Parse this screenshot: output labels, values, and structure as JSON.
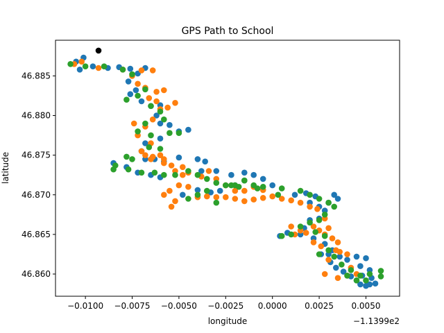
{
  "chart_data": {
    "type": "scatter",
    "title": "GPS Path to School",
    "xlabel": "longitude",
    "ylabel": "latitude",
    "x_offset_label": "−1.1399e2",
    "x_ticks": [
      -0.01,
      -0.0075,
      -0.005,
      -0.0025,
      0.0,
      0.0025,
      0.005
    ],
    "x_tick_labels": [
      "−0.0100",
      "−0.0075",
      "−0.0050",
      "−0.0025",
      "0.0000",
      "0.0025",
      "0.0050"
    ],
    "y_ticks": [
      46.86,
      46.865,
      46.87,
      46.875,
      46.88,
      46.885
    ],
    "y_tick_labels": [
      "46.860",
      "46.865",
      "46.870",
      "46.875",
      "46.880",
      "46.885"
    ],
    "xlim": [
      -0.0116,
      0.0068
    ],
    "ylim": [
      46.8572,
      46.8895
    ],
    "grid": false,
    "colors": [
      "#1f77b4",
      "#ff7f0e",
      "#2ca02c",
      "#000000"
    ],
    "series": [
      {
        "color": "#1f77b4",
        "points": [
          [
            -0.0105,
            46.8868
          ],
          [
            -0.0101,
            46.8873
          ],
          [
            -0.0103,
            46.8858
          ],
          [
            -0.0096,
            46.8862
          ],
          [
            -0.0088,
            46.886
          ],
          [
            -0.0082,
            46.8861
          ],
          [
            -0.0076,
            46.8859
          ],
          [
            -0.0072,
            46.8853
          ],
          [
            -0.0068,
            46.886
          ],
          [
            -0.0077,
            46.8843
          ],
          [
            -0.0073,
            46.8832
          ],
          [
            -0.0076,
            46.8827
          ],
          [
            -0.007,
            46.8818
          ],
          [
            -0.0065,
            46.8812
          ],
          [
            -0.006,
            46.8813
          ],
          [
            -0.0062,
            46.88
          ],
          [
            -0.006,
            46.879
          ],
          [
            -0.0055,
            46.8788
          ],
          [
            -0.005,
            46.878
          ],
          [
            -0.0045,
            46.8782
          ],
          [
            -0.006,
            46.8771
          ],
          [
            -0.0068,
            46.8765
          ],
          [
            -0.007,
            46.8755
          ],
          [
            -0.0068,
            46.8745
          ],
          [
            -0.0063,
            46.8745
          ],
          [
            -0.0058,
            46.8742
          ],
          [
            -0.005,
            46.8747
          ],
          [
            -0.004,
            46.8745
          ],
          [
            -0.0036,
            46.8742
          ],
          [
            -0.0038,
            46.873
          ],
          [
            -0.003,
            46.873
          ],
          [
            -0.0022,
            46.8725
          ],
          [
            -0.0015,
            46.8728
          ],
          [
            -0.001,
            46.8725
          ],
          [
            -0.0005,
            46.872
          ],
          [
            0.0,
            46.8712
          ],
          [
            -0.0015,
            46.8718
          ],
          [
            -0.002,
            46.8712
          ],
          [
            -0.0028,
            46.8705
          ],
          [
            -0.0033,
            46.8703
          ],
          [
            -0.004,
            46.8706
          ],
          [
            -0.0048,
            46.87
          ],
          [
            -0.0078,
            46.8735
          ],
          [
            -0.0085,
            46.874
          ],
          [
            -0.0072,
            46.8728
          ],
          [
            -0.0065,
            46.8725
          ],
          [
            -0.006,
            46.8722
          ],
          [
            0.0012,
            46.87
          ],
          [
            0.0018,
            46.8702
          ],
          [
            0.0023,
            46.8698
          ],
          [
            0.002,
            46.869
          ],
          [
            0.0025,
            46.8685
          ],
          [
            0.003,
            46.869
          ],
          [
            0.0033,
            46.87
          ],
          [
            0.0035,
            46.8695
          ],
          [
            0.0028,
            46.868
          ],
          [
            0.0025,
            46.867
          ],
          [
            0.002,
            46.8668
          ],
          [
            0.0017,
            46.8658
          ],
          [
            0.0015,
            46.865
          ],
          [
            0.0008,
            46.8652
          ],
          [
            0.0004,
            46.8648
          ],
          [
            0.0022,
            46.8645
          ],
          [
            0.0028,
            46.8638
          ],
          [
            0.0032,
            46.863
          ],
          [
            0.003,
            46.8625
          ],
          [
            0.0036,
            46.8622
          ],
          [
            0.004,
            46.8618
          ],
          [
            0.0045,
            46.8622
          ],
          [
            0.005,
            46.862
          ],
          [
            0.0047,
            46.861
          ],
          [
            0.0052,
            46.8605
          ],
          [
            0.0048,
            46.8598
          ],
          [
            0.0045,
            46.8592
          ],
          [
            0.0047,
            46.8587
          ],
          [
            0.005,
            46.8585
          ],
          [
            0.0052,
            46.8587
          ],
          [
            0.0055,
            46.8588
          ],
          [
            0.0053,
            46.8595
          ],
          [
            0.0042,
            46.8597
          ],
          [
            0.0038,
            46.8603
          ],
          [
            0.0034,
            46.8608
          ],
          [
            0.0031,
            46.8615
          ],
          [
            0.0026,
            46.8625
          ]
        ]
      },
      {
        "color": "#ff7f0e",
        "points": [
          [
            -0.0106,
            46.8865
          ],
          [
            -0.0102,
            46.8868
          ],
          [
            -0.0093,
            46.886
          ],
          [
            -0.008,
            46.8858
          ],
          [
            -0.007,
            46.8857
          ],
          [
            -0.0064,
            46.8857
          ],
          [
            -0.0075,
            46.885
          ],
          [
            -0.0072,
            46.884
          ],
          [
            -0.0068,
            46.8835
          ],
          [
            -0.0062,
            46.883
          ],
          [
            -0.0058,
            46.8832
          ],
          [
            -0.0066,
            46.8822
          ],
          [
            -0.0062,
            46.8818
          ],
          [
            -0.006,
            46.8808
          ],
          [
            -0.0056,
            46.881
          ],
          [
            -0.0052,
            46.8816
          ],
          [
            -0.0064,
            46.8795
          ],
          [
            -0.0068,
            46.8786
          ],
          [
            -0.0072,
            46.8775
          ],
          [
            -0.0074,
            46.879
          ],
          [
            -0.0065,
            46.8765
          ],
          [
            -0.0068,
            46.875
          ],
          [
            -0.0064,
            46.8748
          ],
          [
            -0.0058,
            46.874
          ],
          [
            -0.0054,
            46.8737
          ],
          [
            -0.0048,
            46.8735
          ],
          [
            -0.0045,
            46.8728
          ],
          [
            -0.0038,
            46.8723
          ],
          [
            -0.0034,
            46.873
          ],
          [
            -0.003,
            46.872
          ],
          [
            -0.0025,
            46.8712
          ],
          [
            -0.002,
            46.8705
          ],
          [
            -0.0015,
            46.8705
          ],
          [
            -0.001,
            46.871
          ],
          [
            -0.0005,
            46.8706
          ],
          [
            0.0,
            46.8698
          ],
          [
            0.0005,
            46.8695
          ],
          [
            0.001,
            46.8693
          ],
          [
            0.0015,
            46.869
          ],
          [
            0.002,
            46.8685
          ],
          [
            0.0024,
            46.8682
          ],
          [
            0.0028,
            46.867
          ],
          [
            0.0022,
            46.866
          ],
          [
            0.0025,
            46.8655
          ],
          [
            0.0028,
            46.865
          ],
          [
            0.0032,
            46.8645
          ],
          [
            0.0035,
            46.864
          ],
          [
            0.0034,
            46.863
          ],
          [
            0.003,
            46.8618
          ],
          [
            0.0028,
            46.86
          ],
          [
            0.0035,
            46.8595
          ],
          [
            0.004,
            46.8598
          ],
          [
            0.0045,
            46.86
          ],
          [
            0.0042,
            46.8608
          ],
          [
            -0.0045,
            46.871
          ],
          [
            -0.005,
            46.8712
          ],
          [
            -0.0055,
            46.8705
          ],
          [
            -0.0058,
            46.87
          ],
          [
            -0.0052,
            46.8692
          ],
          [
            -0.0054,
            46.8685
          ],
          [
            -0.004,
            46.8697
          ],
          [
            -0.0035,
            46.8698
          ],
          [
            -0.003,
            46.8697
          ],
          [
            -0.0025,
            46.8697
          ],
          [
            -0.002,
            46.8695
          ],
          [
            -0.0015,
            46.8692
          ],
          [
            -0.001,
            46.8694
          ],
          [
            -0.0005,
            46.8696
          ],
          [
            -0.006,
            46.875
          ],
          [
            -0.007,
            46.8755
          ],
          [
            -0.0065,
            46.8745
          ],
          [
            -0.0058,
            46.8745
          ],
          [
            -0.0052,
            46.873
          ],
          [
            -0.0048,
            46.8725
          ],
          [
            0.001,
            46.866
          ],
          [
            0.0015,
            46.8655
          ],
          [
            0.0018,
            46.8652
          ],
          [
            0.0022,
            46.864
          ],
          [
            0.0026,
            46.8635
          ],
          [
            0.0012,
            46.865
          ],
          [
            0.003,
            46.8658
          ],
          [
            0.0036,
            46.8628
          ],
          [
            0.004,
            46.8625
          ]
        ]
      },
      {
        "color": "#2ca02c",
        "points": [
          [
            -0.0108,
            46.8865
          ],
          [
            -0.01,
            46.8862
          ],
          [
            -0.009,
            46.8862
          ],
          [
            -0.008,
            46.8858
          ],
          [
            -0.0075,
            46.8852
          ],
          [
            -0.0068,
            46.8833
          ],
          [
            -0.0072,
            46.8825
          ],
          [
            -0.0078,
            46.882
          ],
          [
            -0.0065,
            46.8812
          ],
          [
            -0.006,
            46.8805
          ],
          [
            -0.0058,
            46.8795
          ],
          [
            -0.0068,
            46.879
          ],
          [
            -0.0072,
            46.878
          ],
          [
            -0.0065,
            46.8775
          ],
          [
            -0.0055,
            46.8778
          ],
          [
            -0.005,
            46.8778
          ],
          [
            -0.006,
            46.8758
          ],
          [
            -0.0066,
            46.876
          ],
          [
            -0.0075,
            46.8745
          ],
          [
            -0.0078,
            46.8748
          ],
          [
            -0.0084,
            46.8737
          ],
          [
            -0.0085,
            46.8732
          ],
          [
            -0.0077,
            46.8732
          ],
          [
            -0.007,
            46.8728
          ],
          [
            -0.0063,
            46.8728
          ],
          [
            -0.0058,
            46.8725
          ],
          [
            -0.0052,
            46.8725
          ],
          [
            -0.0045,
            46.873
          ],
          [
            -0.004,
            46.8725
          ],
          [
            -0.0035,
            46.872
          ],
          [
            -0.003,
            46.8715
          ],
          [
            -0.0025,
            46.8712
          ],
          [
            -0.002,
            46.8712
          ],
          [
            -0.0015,
            46.8718
          ],
          [
            -0.001,
            46.8712
          ],
          [
            -0.0005,
            46.871
          ],
          [
            0.0005,
            46.8708
          ],
          [
            0.0015,
            46.8705
          ],
          [
            0.002,
            46.87
          ],
          [
            0.0025,
            46.8695
          ],
          [
            0.003,
            46.869
          ],
          [
            0.0033,
            46.8685
          ],
          [
            0.0028,
            46.8675
          ],
          [
            0.0025,
            46.8668
          ],
          [
            0.002,
            46.8665
          ],
          [
            0.0015,
            46.866
          ],
          [
            0.001,
            46.865
          ],
          [
            0.0005,
            46.8648
          ],
          [
            0.0023,
            46.8653
          ],
          [
            0.0028,
            46.8648
          ],
          [
            0.003,
            46.863
          ],
          [
            0.0025,
            46.8625
          ],
          [
            0.0033,
            46.8622
          ],
          [
            0.0037,
            46.8612
          ],
          [
            0.0042,
            46.8605
          ],
          [
            0.0047,
            46.8598
          ],
          [
            0.0052,
            46.86
          ],
          [
            0.0058,
            46.8604
          ],
          [
            0.0058,
            46.8597
          ],
          [
            0.005,
            46.8592
          ],
          [
            0.0045,
            46.8592
          ],
          [
            0.004,
            46.8598
          ],
          [
            -0.0035,
            46.8705
          ],
          [
            -0.004,
            46.87
          ],
          [
            -0.0045,
            46.8695
          ],
          [
            -0.003,
            46.869
          ],
          [
            -0.0022,
            46.8712
          ],
          [
            -0.0018,
            46.871
          ],
          [
            -0.0008,
            46.8708
          ],
          [
            0.0003,
            46.87
          ]
        ]
      },
      {
        "color": "#000000",
        "points": [
          [
            -0.0093,
            46.8882
          ]
        ]
      }
    ]
  }
}
